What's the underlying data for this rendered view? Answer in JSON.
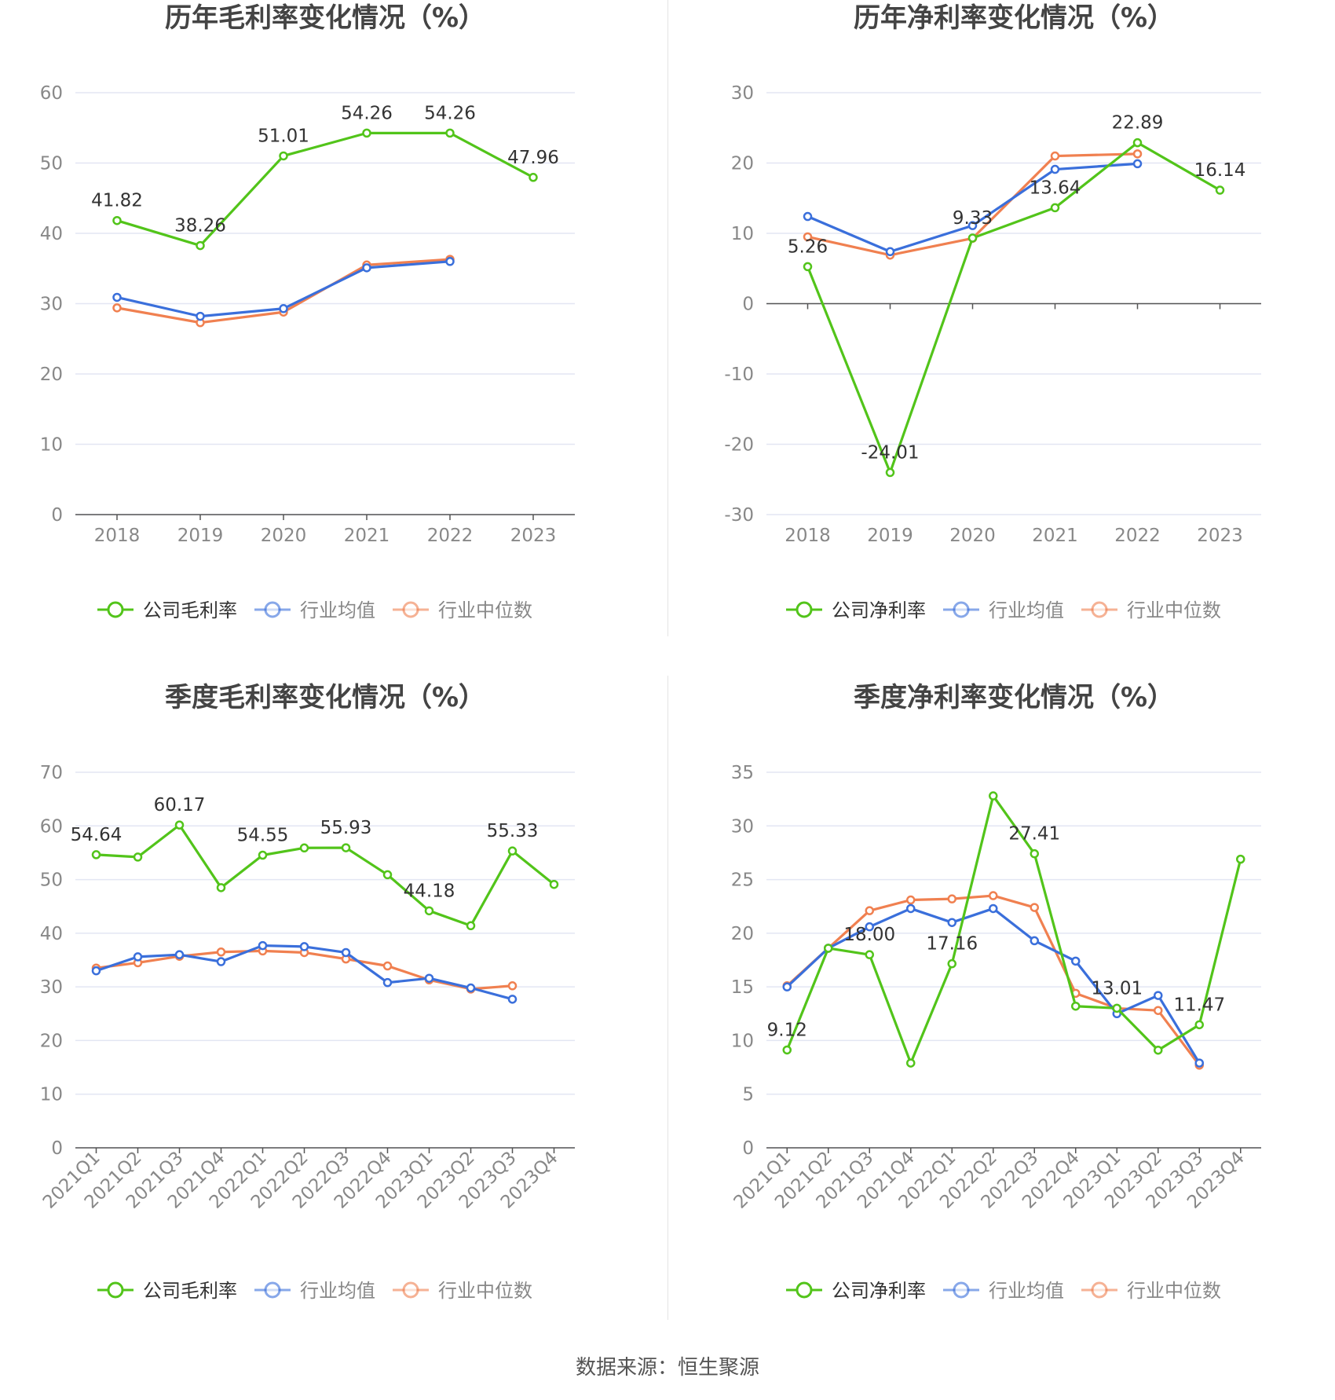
{
  "colors": {
    "company": "#52c41a",
    "avg": "#3a6fdb",
    "median": "#f08050",
    "grid": "#e3e6f3",
    "axis": "#555555",
    "tick": "#888888",
    "title": "#444444"
  },
  "chart_data": [
    {
      "type": "line",
      "title": "历年毛利率变化情况（%）",
      "categories": [
        "2018",
        "2019",
        "2020",
        "2021",
        "2022",
        "2023"
      ],
      "ylim": [
        0,
        60
      ],
      "yticks": [
        0,
        10,
        20,
        30,
        40,
        50,
        60
      ],
      "rotate_labels": false,
      "series": [
        {
          "name": "公司毛利率",
          "color": "#52c41a",
          "values": [
            41.82,
            38.26,
            51.01,
            54.26,
            54.26,
            47.96
          ],
          "labels": [
            "41.82",
            "38.26",
            "51.01",
            "54.26",
            "54.26",
            "47.96"
          ]
        },
        {
          "name": "行业均值",
          "color": "#3a6fdb",
          "values": [
            30.9,
            28.2,
            29.3,
            35.1,
            36.0,
            null
          ]
        },
        {
          "name": "行业中位数",
          "color": "#f08050",
          "values": [
            29.4,
            27.3,
            28.8,
            35.5,
            36.3,
            null
          ]
        }
      ],
      "grid": true,
      "legend": "bottom"
    },
    {
      "type": "line",
      "title": "历年净利率变化情况（%）",
      "categories": [
        "2018",
        "2019",
        "2020",
        "2021",
        "2022",
        "2023"
      ],
      "ylim": [
        -30,
        30
      ],
      "yticks": [
        -30,
        -20,
        -10,
        0,
        10,
        20,
        30
      ],
      "rotate_labels": false,
      "series": [
        {
          "name": "公司净利率",
          "color": "#52c41a",
          "values": [
            5.26,
            -24.01,
            9.33,
            13.64,
            22.89,
            16.14
          ],
          "labels": [
            "5.26",
            "-24.01",
            "9.33",
            "13.64",
            "22.89",
            "16.14"
          ]
        },
        {
          "name": "行业均值",
          "color": "#3a6fdb",
          "values": [
            12.4,
            7.4,
            11.1,
            19.1,
            19.9,
            null
          ]
        },
        {
          "name": "行业中位数",
          "color": "#f08050",
          "values": [
            9.5,
            6.9,
            9.3,
            21.0,
            21.3,
            null
          ]
        }
      ],
      "grid": true,
      "legend": "bottom"
    },
    {
      "type": "line",
      "title": "季度毛利率变化情况（%）",
      "categories": [
        "2021Q1",
        "2021Q2",
        "2021Q3",
        "2021Q4",
        "2022Q1",
        "2022Q2",
        "2022Q3",
        "2022Q4",
        "2023Q1",
        "2023Q2",
        "2023Q3",
        "2023Q4"
      ],
      "ylim": [
        0,
        70
      ],
      "yticks": [
        0,
        10,
        20,
        30,
        40,
        50,
        60,
        70
      ],
      "rotate_labels": true,
      "series": [
        {
          "name": "公司毛利率",
          "color": "#52c41a",
          "values": [
            54.64,
            54.2,
            60.17,
            48.5,
            54.55,
            55.9,
            55.93,
            50.9,
            44.18,
            41.4,
            55.33,
            49.1
          ],
          "labels": [
            "54.64",
            "",
            "60.17",
            "",
            "54.55",
            "",
            "55.93",
            "",
            "44.18",
            "",
            "55.33",
            ""
          ]
        },
        {
          "name": "行业均值",
          "color": "#3a6fdb",
          "values": [
            33.0,
            35.6,
            36.0,
            34.7,
            37.7,
            37.5,
            36.4,
            30.8,
            31.6,
            29.8,
            27.7,
            null
          ]
        },
        {
          "name": "行业中位数",
          "color": "#f08050",
          "values": [
            33.5,
            34.5,
            35.7,
            36.5,
            36.7,
            36.4,
            35.2,
            33.9,
            31.3,
            29.6,
            30.2,
            null
          ]
        }
      ],
      "grid": true,
      "legend": "bottom"
    },
    {
      "type": "line",
      "title": "季度净利率变化情况（%）",
      "categories": [
        "2021Q1",
        "2021Q2",
        "2021Q3",
        "2021Q4",
        "2022Q1",
        "2022Q2",
        "2022Q3",
        "2022Q4",
        "2023Q1",
        "2023Q2",
        "2023Q3",
        "2023Q4"
      ],
      "ylim": [
        0,
        35
      ],
      "yticks": [
        0,
        5,
        10,
        15,
        20,
        25,
        30,
        35
      ],
      "rotate_labels": true,
      "series": [
        {
          "name": "公司净利率",
          "color": "#52c41a",
          "values": [
            9.12,
            18.6,
            18.0,
            7.9,
            17.16,
            32.8,
            27.41,
            13.2,
            13.01,
            9.1,
            11.47,
            26.9
          ],
          "labels": [
            "9.12",
            "",
            "18.00",
            "",
            "17.16",
            "",
            "27.41",
            "",
            "13.01",
            "",
            "11.47",
            ""
          ]
        },
        {
          "name": "行业均值",
          "color": "#3a6fdb",
          "values": [
            15.0,
            18.6,
            20.6,
            22.3,
            21.0,
            22.3,
            19.3,
            17.4,
            12.5,
            14.2,
            7.9,
            null
          ]
        },
        {
          "name": "行业中位数",
          "color": "#f08050",
          "values": [
            15.1,
            18.6,
            22.1,
            23.1,
            23.2,
            23.5,
            22.4,
            14.4,
            13.0,
            12.8,
            7.7,
            null
          ]
        }
      ],
      "grid": true,
      "legend": "bottom"
    }
  ],
  "footer": {
    "source": "数据来源：恒生聚源"
  }
}
